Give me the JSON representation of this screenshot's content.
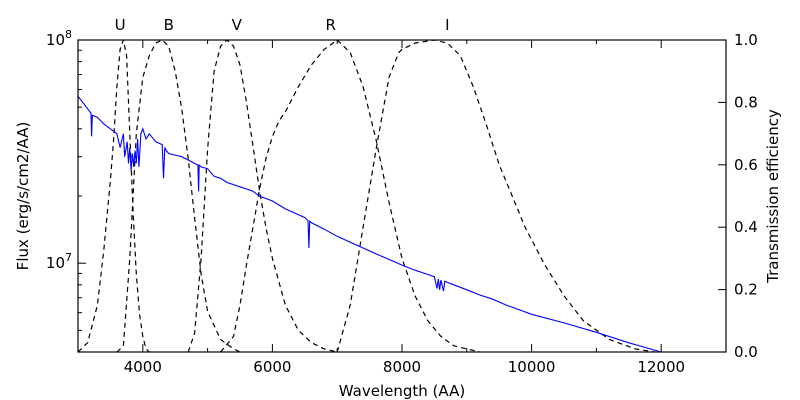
{
  "chart_data": {
    "type": "line",
    "title": "",
    "xlabel": "Wavelength (AA)",
    "ylabel_left": "Flux (erg/s/cm2/AA)",
    "ylabel_right": "Transmission efficiency",
    "xlim": [
      3000,
      13000
    ],
    "ylim_left": [
      4000000,
      100000000
    ],
    "ylim_right": [
      0,
      1.0
    ],
    "left_scale": "log",
    "grid": false,
    "x_ticks": [
      {
        "value": 4000,
        "label": "4000"
      },
      {
        "value": 6000,
        "label": "6000"
      },
      {
        "value": 8000,
        "label": "8000"
      },
      {
        "value": 10000,
        "label": "10000"
      },
      {
        "value": 12000,
        "label": "12000"
      }
    ],
    "left_ticks": [
      {
        "value": 10000000,
        "base": "10",
        "exp": "7"
      },
      {
        "value": 100000000,
        "base": "10",
        "exp": "8"
      }
    ],
    "right_ticks": [
      {
        "value": 0.0,
        "label": "0.0"
      },
      {
        "value": 0.2,
        "label": "0.2"
      },
      {
        "value": 0.4,
        "label": "0.4"
      },
      {
        "value": 0.6,
        "label": "0.6"
      },
      {
        "value": 0.8,
        "label": "0.8"
      },
      {
        "value": 1.0,
        "label": "1.0"
      }
    ],
    "spectrum": {
      "color": "#0000ff",
      "x": [
        3000,
        3200,
        3210,
        3220,
        3300,
        3400,
        3500,
        3600,
        3650,
        3700,
        3720,
        3760,
        3780,
        3800,
        3820,
        3840,
        3860,
        3880,
        3900,
        3920,
        3940,
        3970,
        4000,
        4050,
        4100,
        4200,
        4300,
        4320,
        4340,
        4360,
        4400,
        4500,
        4600,
        4700,
        4800,
        4850,
        4861,
        4870,
        4900,
        5000,
        5100,
        5200,
        5300,
        5400,
        5500,
        5600,
        5700,
        5800,
        5900,
        6000,
        6200,
        6400,
        6500,
        6550,
        6563,
        6575,
        6600,
        6800,
        7000,
        7200,
        7400,
        7600,
        7800,
        8000,
        8200,
        8400,
        8500,
        8540,
        8560,
        8580,
        8600,
        8640,
        8660,
        8700,
        8800,
        9000,
        9200,
        9400,
        9500,
        9600,
        9800,
        10000,
        10500,
        11000,
        11500,
        12000
      ],
      "y": [
        56000000,
        47000000,
        37000000,
        46000000,
        45000000,
        42000000,
        40000000,
        38000000,
        33000000,
        38000000,
        30000000,
        35000000,
        28000000,
        33000000,
        26000000,
        31000000,
        27000000,
        32000000,
        28000000,
        36000000,
        27000000,
        38000000,
        40000000,
        36000000,
        38000000,
        35000000,
        34000000,
        24000000,
        33000000,
        32000000,
        31000000,
        30500000,
        30000000,
        29000000,
        28000000,
        27500000,
        21000000,
        27500000,
        27000000,
        26500000,
        24500000,
        24000000,
        23000000,
        22500000,
        22000000,
        21500000,
        21000000,
        20000000,
        19500000,
        19000000,
        17500000,
        16500000,
        16000000,
        15500000,
        11700000,
        15400000,
        15200000,
        14200000,
        13200000,
        12400000,
        11700000,
        11000000,
        10400000,
        9800000,
        9300000,
        8900000,
        8700000,
        7700000,
        8500000,
        7600000,
        8400000,
        7500000,
        8300000,
        8200000,
        8000000,
        7600000,
        7200000,
        6900000,
        6700000,
        6500000,
        6200000,
        5900000,
        5400000,
        4900000,
        4400000,
        4000000
      ]
    },
    "filters": [
      {
        "name": "U",
        "label_x": 3650,
        "x": [
          3000,
          3150,
          3300,
          3400,
          3500,
          3550,
          3600,
          3650,
          3700,
          3750,
          3800,
          3850,
          3900,
          3950,
          4000,
          4050,
          4100
        ],
        "y": [
          0.0,
          0.03,
          0.15,
          0.33,
          0.55,
          0.68,
          0.85,
          0.97,
          1.0,
          0.95,
          0.7,
          0.45,
          0.25,
          0.12,
          0.05,
          0.01,
          0.0
        ]
      },
      {
        "name": "B",
        "label_x": 4400,
        "x": [
          3600,
          3700,
          3800,
          3900,
          4000,
          4100,
          4200,
          4300,
          4400,
          4500,
          4600,
          4700,
          4800,
          4900,
          5000,
          5200,
          5400,
          5500
        ],
        "y": [
          0.0,
          0.02,
          0.3,
          0.7,
          0.88,
          0.95,
          0.99,
          1.0,
          0.98,
          0.9,
          0.78,
          0.62,
          0.43,
          0.25,
          0.13,
          0.04,
          0.01,
          0.0
        ]
      },
      {
        "name": "V",
        "label_x": 5450,
        "x": [
          4700,
          4800,
          4900,
          5000,
          5100,
          5200,
          5300,
          5400,
          5500,
          5600,
          5700,
          5800,
          5900,
          6000,
          6200,
          6400,
          6600,
          6800,
          7000
        ],
        "y": [
          0.0,
          0.06,
          0.3,
          0.65,
          0.9,
          0.98,
          1.0,
          0.98,
          0.92,
          0.8,
          0.66,
          0.52,
          0.4,
          0.3,
          0.15,
          0.07,
          0.03,
          0.01,
          0.0
        ]
      },
      {
        "name": "R",
        "label_x": 6900,
        "x": [
          5200,
          5400,
          5500,
          5600,
          5700,
          5800,
          5900,
          6000,
          6100,
          6200,
          6400,
          6600,
          6800,
          7000,
          7200,
          7400,
          7600,
          7800,
          8000,
          8200,
          8400,
          8600,
          8800,
          9000,
          9200
        ],
        "y": [
          0.0,
          0.05,
          0.15,
          0.28,
          0.4,
          0.52,
          0.62,
          0.69,
          0.74,
          0.77,
          0.85,
          0.92,
          0.97,
          1.0,
          0.96,
          0.85,
          0.68,
          0.48,
          0.3,
          0.18,
          0.1,
          0.05,
          0.02,
          0.01,
          0.0
        ]
      },
      {
        "name": "I",
        "label_x": 8700,
        "x": [
          7000,
          7200,
          7400,
          7600,
          7800,
          7950,
          8000,
          8200,
          8500,
          8700,
          8900,
          9100,
          9300,
          9500,
          9700,
          9900,
          10200,
          10500,
          10800,
          11200,
          11600,
          11900
        ],
        "y": [
          0.0,
          0.15,
          0.4,
          0.65,
          0.88,
          0.96,
          0.97,
          0.99,
          1.0,
          0.99,
          0.95,
          0.85,
          0.73,
          0.6,
          0.5,
          0.4,
          0.28,
          0.18,
          0.1,
          0.04,
          0.01,
          0.0
        ]
      }
    ]
  }
}
